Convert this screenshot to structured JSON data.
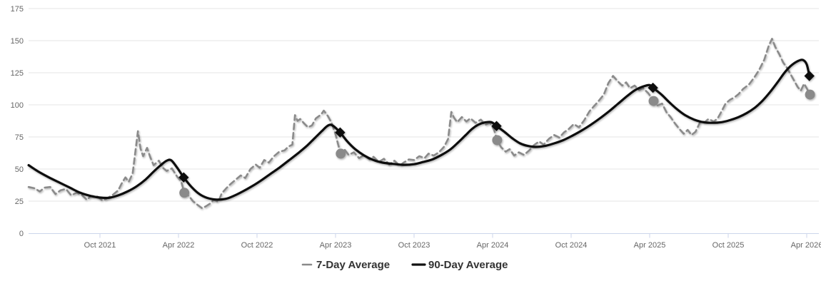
{
  "chart_data": {
    "type": "line",
    "title": "",
    "xlabel": "",
    "ylabel": "",
    "x_unit": "months since April 2021",
    "ylim": [
      0,
      175
    ],
    "yticks": [
      0,
      25,
      50,
      75,
      100,
      125,
      150,
      175
    ],
    "xticks": [
      {
        "t": 6,
        "label": "Oct 2021"
      },
      {
        "t": 12,
        "label": "Apr 2022"
      },
      {
        "t": 18,
        "label": "Oct 2022"
      },
      {
        "t": 24,
        "label": "Apr 2023"
      },
      {
        "t": 30,
        "label": "Oct 2023"
      },
      {
        "t": 36,
        "label": "Apr 2024"
      },
      {
        "t": 42,
        "label": "Oct 2024"
      },
      {
        "t": 48,
        "label": "Apr 2025"
      },
      {
        "t": 54,
        "label": "Oct 2025"
      },
      {
        "t": 60,
        "label": "Apr 2026"
      }
    ],
    "grid": true,
    "legend_position": "bottom-center",
    "colors": {
      "grid_line": "#e6e6e6",
      "axis_line": "#ccd6eb",
      "tick_label": "#666666",
      "legend_text": "#333333",
      "series_7day": "#8a8a8a",
      "series_90day": "#111111"
    },
    "series": [
      {
        "name": "7-Day Average",
        "color": "#8a8a8a",
        "dash_style": "Dash",
        "line_width": 2.6,
        "marker_shape": "circle",
        "marker_points": [
          [
            12.45,
            31.5
          ],
          [
            24.4,
            62
          ],
          [
            36.35,
            72.5
          ],
          [
            48.3,
            103
          ],
          [
            60.25,
            108
          ]
        ],
        "points": [
          [
            0.55,
            36
          ],
          [
            1.0,
            35
          ],
          [
            1.4,
            32.5
          ],
          [
            1.75,
            35.5
          ],
          [
            2.2,
            36
          ],
          [
            2.6,
            30.5
          ],
          [
            3.0,
            33.5
          ],
          [
            3.4,
            34.5
          ],
          [
            3.8,
            29.5
          ],
          [
            4.2,
            31.5
          ],
          [
            4.6,
            30
          ],
          [
            5.0,
            26
          ],
          [
            5.3,
            29
          ],
          [
            5.8,
            28.5
          ],
          [
            6.2,
            25.5
          ],
          [
            6.5,
            27
          ],
          [
            7.0,
            30
          ],
          [
            7.4,
            33.5
          ],
          [
            7.65,
            38.5
          ],
          [
            7.95,
            43.5
          ],
          [
            8.2,
            40
          ],
          [
            8.5,
            46.5
          ],
          [
            8.9,
            79.5
          ],
          [
            9.1,
            66
          ],
          [
            9.3,
            60
          ],
          [
            9.6,
            66.5
          ],
          [
            9.85,
            59
          ],
          [
            10.1,
            53
          ],
          [
            10.5,
            56.5
          ],
          [
            10.8,
            51
          ],
          [
            11.1,
            48.5
          ],
          [
            11.5,
            50.5
          ],
          [
            11.9,
            44
          ],
          [
            12.2,
            40.5
          ],
          [
            12.45,
            31.5
          ],
          [
            12.8,
            29
          ],
          [
            13.1,
            25
          ],
          [
            13.4,
            22.5
          ],
          [
            13.8,
            19.5
          ],
          [
            14.1,
            21
          ],
          [
            14.4,
            23
          ],
          [
            14.7,
            26
          ],
          [
            15.05,
            24.5
          ],
          [
            15.3,
            31
          ],
          [
            15.65,
            35
          ],
          [
            16.0,
            38.5
          ],
          [
            16.4,
            42
          ],
          [
            16.75,
            45
          ],
          [
            17.1,
            43
          ],
          [
            17.5,
            50
          ],
          [
            17.9,
            53.5
          ],
          [
            18.2,
            51
          ],
          [
            18.55,
            57
          ],
          [
            18.9,
            55
          ],
          [
            19.3,
            60
          ],
          [
            19.7,
            63.5
          ],
          [
            20.1,
            64.5
          ],
          [
            20.4,
            67.5
          ],
          [
            20.7,
            69
          ],
          [
            20.9,
            92
          ],
          [
            21.1,
            87.5
          ],
          [
            21.3,
            89
          ],
          [
            21.6,
            85.5
          ],
          [
            21.9,
            82.5
          ],
          [
            22.2,
            84
          ],
          [
            22.5,
            89.5
          ],
          [
            22.9,
            92.5
          ],
          [
            23.1,
            95.5
          ],
          [
            23.4,
            91.5
          ],
          [
            23.7,
            86
          ],
          [
            24.0,
            77
          ],
          [
            24.2,
            69
          ],
          [
            24.4,
            62
          ],
          [
            24.7,
            65
          ],
          [
            25.0,
            61
          ],
          [
            25.4,
            63
          ],
          [
            25.8,
            58.5
          ],
          [
            26.2,
            61
          ],
          [
            26.6,
            57.5
          ],
          [
            26.9,
            59.5
          ],
          [
            27.3,
            55.5
          ],
          [
            27.7,
            58
          ],
          [
            28.1,
            53.5
          ],
          [
            28.5,
            56.5
          ],
          [
            28.9,
            52.5
          ],
          [
            29.2,
            55
          ],
          [
            29.6,
            57.5
          ],
          [
            30.0,
            57
          ],
          [
            30.4,
            60
          ],
          [
            30.8,
            58.5
          ],
          [
            31.1,
            62
          ],
          [
            31.5,
            60.5
          ],
          [
            31.9,
            63
          ],
          [
            32.3,
            67.5
          ],
          [
            32.6,
            73.5
          ],
          [
            32.85,
            94.5
          ],
          [
            33.05,
            90
          ],
          [
            33.3,
            86.5
          ],
          [
            33.65,
            90.5
          ],
          [
            34.0,
            87
          ],
          [
            34.3,
            89.5
          ],
          [
            34.7,
            86
          ],
          [
            35.1,
            88.5
          ],
          [
            35.45,
            84.5
          ],
          [
            35.8,
            86
          ],
          [
            36.1,
            81
          ],
          [
            36.35,
            72.5
          ],
          [
            36.65,
            67
          ],
          [
            37.0,
            63.5
          ],
          [
            37.3,
            65.5
          ],
          [
            37.65,
            60.5
          ],
          [
            38.0,
            63
          ],
          [
            38.4,
            61
          ],
          [
            38.8,
            64.5
          ],
          [
            39.15,
            68.5
          ],
          [
            39.55,
            71.5
          ],
          [
            39.9,
            69
          ],
          [
            40.3,
            73.5
          ],
          [
            40.7,
            76.5
          ],
          [
            41.1,
            74.5
          ],
          [
            41.45,
            78.5
          ],
          [
            41.8,
            81
          ],
          [
            42.2,
            85
          ],
          [
            42.6,
            82.5
          ],
          [
            43.0,
            88
          ],
          [
            43.4,
            95
          ],
          [
            43.75,
            99
          ],
          [
            44.1,
            103
          ],
          [
            44.5,
            108
          ],
          [
            44.85,
            117
          ],
          [
            45.2,
            122.5
          ],
          [
            45.55,
            118.5
          ],
          [
            45.9,
            115
          ],
          [
            46.2,
            117.5
          ],
          [
            46.5,
            113
          ],
          [
            46.85,
            115
          ],
          [
            47.2,
            111.5
          ],
          [
            47.5,
            113
          ],
          [
            47.9,
            109
          ],
          [
            48.3,
            103
          ],
          [
            48.6,
            99.5
          ],
          [
            48.95,
            101
          ],
          [
            49.3,
            94
          ],
          [
            49.6,
            90.5
          ],
          [
            49.9,
            86
          ],
          [
            50.25,
            81.5
          ],
          [
            50.6,
            77.5
          ],
          [
            50.9,
            80.5
          ],
          [
            51.2,
            76.5
          ],
          [
            51.5,
            79
          ],
          [
            51.9,
            87.5
          ],
          [
            52.2,
            86.5
          ],
          [
            52.5,
            89
          ],
          [
            52.9,
            87
          ],
          [
            53.2,
            89.5
          ],
          [
            53.5,
            95
          ],
          [
            53.8,
            101
          ],
          [
            54.15,
            104
          ],
          [
            54.5,
            106
          ],
          [
            54.8,
            108.5
          ],
          [
            55.15,
            112.5
          ],
          [
            55.6,
            116
          ],
          [
            56.0,
            121.5
          ],
          [
            56.35,
            127
          ],
          [
            56.75,
            135
          ],
          [
            57.1,
            146
          ],
          [
            57.35,
            151.5
          ],
          [
            57.6,
            145
          ],
          [
            57.9,
            139.5
          ],
          [
            58.2,
            133
          ],
          [
            58.45,
            129.5
          ],
          [
            58.7,
            125
          ],
          [
            59.0,
            119.5
          ],
          [
            59.3,
            114
          ],
          [
            59.55,
            111
          ],
          [
            59.8,
            116.5
          ],
          [
            60.05,
            112
          ],
          [
            60.25,
            108
          ]
        ]
      },
      {
        "name": "90-Day Average",
        "color": "#111111",
        "dash_style": "Solid",
        "line_width": 3.2,
        "marker_shape": "diamond",
        "marker_points": [
          [
            12.4,
            43.5
          ],
          [
            24.35,
            78.5
          ],
          [
            36.3,
            83.5
          ],
          [
            48.25,
            113.3
          ],
          [
            60.2,
            122.5
          ]
        ],
        "points": [
          [
            0.55,
            53
          ],
          [
            1.3,
            48
          ],
          [
            2.1,
            43.5
          ],
          [
            2.9,
            39.5
          ],
          [
            3.7,
            35.5
          ],
          [
            4.5,
            31.5
          ],
          [
            5.3,
            29
          ],
          [
            6.0,
            27.8
          ],
          [
            6.7,
            27.6
          ],
          [
            7.4,
            29.5
          ],
          [
            8.1,
            32.5
          ],
          [
            8.8,
            36.5
          ],
          [
            9.5,
            42
          ],
          [
            10.1,
            48
          ],
          [
            10.7,
            53.5
          ],
          [
            11.1,
            56.5
          ],
          [
            11.45,
            56.8
          ],
          [
            11.9,
            51
          ],
          [
            12.4,
            43.5
          ],
          [
            13.0,
            36
          ],
          [
            13.6,
            30.5
          ],
          [
            14.2,
            27.5
          ],
          [
            14.9,
            26.2
          ],
          [
            15.6,
            26.8
          ],
          [
            16.2,
            29
          ],
          [
            16.9,
            32.5
          ],
          [
            17.6,
            36.5
          ],
          [
            18.3,
            41
          ],
          [
            19.0,
            46
          ],
          [
            19.7,
            51
          ],
          [
            20.4,
            56.5
          ],
          [
            21.1,
            62
          ],
          [
            21.8,
            68
          ],
          [
            22.4,
            74
          ],
          [
            22.9,
            79
          ],
          [
            23.3,
            83
          ],
          [
            23.6,
            84.5
          ],
          [
            23.9,
            83
          ],
          [
            24.35,
            78.5
          ],
          [
            24.9,
            71.5
          ],
          [
            25.5,
            65.5
          ],
          [
            26.2,
            60.5
          ],
          [
            26.9,
            57
          ],
          [
            27.6,
            55
          ],
          [
            28.4,
            54
          ],
          [
            29.2,
            53.3
          ],
          [
            30.0,
            53.8
          ],
          [
            30.7,
            55.5
          ],
          [
            31.4,
            57.5
          ],
          [
            32.1,
            61
          ],
          [
            32.8,
            65.5
          ],
          [
            33.4,
            71
          ],
          [
            33.9,
            76
          ],
          [
            34.4,
            81
          ],
          [
            34.9,
            84.5
          ],
          [
            35.4,
            86.3
          ],
          [
            35.9,
            86.5
          ],
          [
            36.3,
            83.5
          ],
          [
            36.9,
            79
          ],
          [
            37.5,
            74
          ],
          [
            38.1,
            70
          ],
          [
            38.7,
            68
          ],
          [
            39.3,
            67.2
          ],
          [
            40.0,
            68
          ],
          [
            40.7,
            70
          ],
          [
            41.4,
            72.5
          ],
          [
            42.1,
            76
          ],
          [
            42.8,
            80
          ],
          [
            43.5,
            84.5
          ],
          [
            44.2,
            89.5
          ],
          [
            44.9,
            95
          ],
          [
            45.6,
            101
          ],
          [
            46.3,
            107
          ],
          [
            46.9,
            111.5
          ],
          [
            47.5,
            114.3
          ],
          [
            48.0,
            115.4
          ],
          [
            48.25,
            113.3
          ],
          [
            48.9,
            108
          ],
          [
            49.5,
            102
          ],
          [
            50.1,
            96.5
          ],
          [
            50.7,
            92
          ],
          [
            51.4,
            88.5
          ],
          [
            52.1,
            86.5
          ],
          [
            52.8,
            86
          ],
          [
            53.5,
            86.5
          ],
          [
            54.1,
            88
          ],
          [
            54.8,
            90.5
          ],
          [
            55.4,
            93.5
          ],
          [
            56.0,
            97.5
          ],
          [
            56.6,
            103
          ],
          [
            57.2,
            110
          ],
          [
            57.8,
            118
          ],
          [
            58.3,
            125
          ],
          [
            58.8,
            130.5
          ],
          [
            59.3,
            134
          ],
          [
            59.7,
            135
          ],
          [
            60.0,
            131.5
          ],
          [
            60.2,
            122.5
          ]
        ]
      }
    ]
  },
  "legend": {
    "items": [
      {
        "label": "7-Day Average"
      },
      {
        "label": "90-Day Average"
      }
    ]
  }
}
